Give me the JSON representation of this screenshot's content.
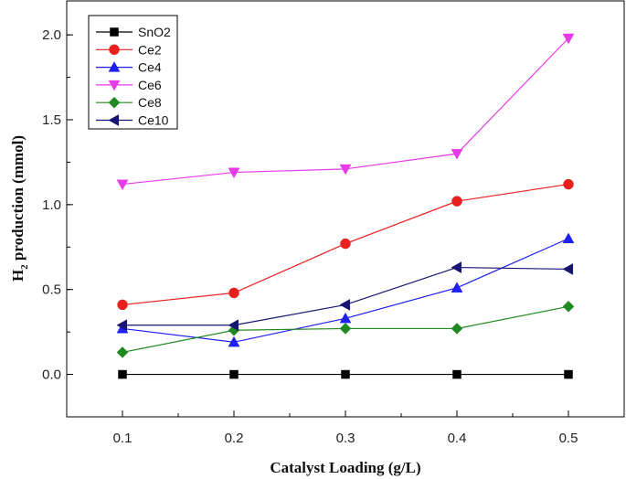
{
  "chart_data": {
    "type": "line",
    "title": "",
    "xlabel": "Catalyst Loading (g/L)",
    "ylabel_main": "H",
    "ylabel_sub": "2",
    "ylabel_rest": " production (mmol)",
    "x": [
      0.1,
      0.2,
      0.3,
      0.4,
      0.5
    ],
    "xlim": [
      0.05,
      0.55
    ],
    "ylim": [
      -0.25,
      2.2
    ],
    "xticks": [
      "0.1",
      "0.2",
      "0.3",
      "0.4",
      "0.5"
    ],
    "yticks": [
      "0.0",
      "0.5",
      "1.0",
      "1.5",
      "2.0"
    ],
    "legend_position": "top-left",
    "series": [
      {
        "name": "SnO2",
        "color": "#000000",
        "marker": "square",
        "values": [
          0.0,
          0.0,
          0.0,
          0.0,
          0.0
        ]
      },
      {
        "name": "Ce2",
        "color": "#e8201e",
        "marker": "circle",
        "values": [
          0.41,
          0.48,
          0.77,
          1.02,
          1.12
        ]
      },
      {
        "name": "Ce4",
        "color": "#1f1ff0",
        "marker": "triangle-up",
        "values": [
          0.27,
          0.19,
          0.33,
          0.51,
          0.8
        ]
      },
      {
        "name": "Ce6",
        "color": "#e83ae8",
        "marker": "triangle-down",
        "values": [
          1.12,
          1.19,
          1.21,
          1.3,
          1.98
        ]
      },
      {
        "name": "Ce8",
        "color": "#1f8a1f",
        "marker": "diamond",
        "values": [
          0.13,
          0.26,
          0.27,
          0.27,
          0.4
        ]
      },
      {
        "name": "Ce10",
        "color": "#161672",
        "marker": "triangle-left",
        "values": [
          0.29,
          0.29,
          0.41,
          0.63,
          0.62
        ]
      }
    ]
  }
}
